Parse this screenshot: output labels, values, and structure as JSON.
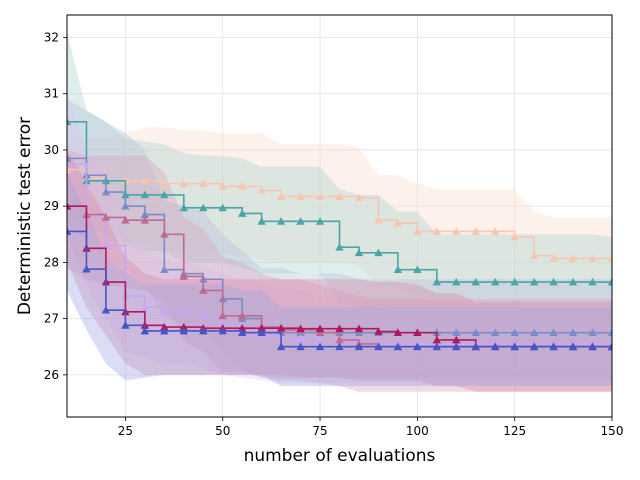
{
  "chart_data": {
    "type": "line",
    "title": "",
    "xlabel": "number of evaluations",
    "ylabel": "Deterministic test error",
    "xlim": [
      10,
      150
    ],
    "ylim": [
      25.25,
      32.4
    ],
    "xticks": [
      25,
      50,
      75,
      100,
      125,
      150
    ],
    "yticks": [
      26,
      27,
      28,
      29,
      30,
      31,
      32
    ],
    "grid": true,
    "x": [
      10,
      15,
      20,
      25,
      30,
      35,
      40,
      45,
      50,
      55,
      60,
      65,
      70,
      75,
      80,
      85,
      90,
      95,
      100,
      105,
      110,
      115,
      120,
      125,
      130,
      135,
      140,
      145,
      150
    ],
    "series": [
      {
        "name": "peach",
        "color": "#f7c6b0",
        "band_color": "#fbd9cc",
        "values": [
          29.65,
          29.5,
          29.45,
          29.45,
          29.45,
          29.4,
          29.4,
          29.4,
          29.35,
          29.35,
          29.28,
          29.17,
          29.17,
          29.17,
          29.17,
          29.15,
          28.75,
          28.7,
          28.55,
          28.55,
          28.55,
          28.55,
          28.55,
          28.45,
          28.12,
          28.07,
          28.07,
          28.07,
          28.07
        ],
        "lower": [
          28.9,
          28.8,
          28.6,
          28.4,
          28.3,
          28.2,
          28.2,
          28.2,
          28.15,
          28.1,
          28.05,
          28.0,
          28.0,
          28.0,
          28.0,
          27.95,
          27.6,
          27.55,
          27.4,
          27.35,
          27.35,
          27.35,
          27.3,
          27.2,
          27.0,
          27.0,
          27.0,
          27.0,
          27.0
        ],
        "upper": [
          30.2,
          30.2,
          30.2,
          30.3,
          30.4,
          30.4,
          30.35,
          30.35,
          30.3,
          30.3,
          30.3,
          30.1,
          30.1,
          30.1,
          30.1,
          30.05,
          29.55,
          29.55,
          29.4,
          29.3,
          29.3,
          29.3,
          29.3,
          29.3,
          28.9,
          28.8,
          28.8,
          28.8,
          28.8
        ]
      },
      {
        "name": "teal",
        "color": "#48a6a6",
        "band_color": "#a7d3ce",
        "values": [
          30.5,
          29.45,
          29.45,
          29.2,
          29.2,
          29.2,
          28.97,
          28.97,
          28.97,
          28.87,
          28.73,
          28.73,
          28.73,
          28.73,
          28.27,
          28.17,
          28.17,
          27.87,
          27.87,
          27.65,
          27.65,
          27.65,
          27.65,
          27.65,
          27.65,
          27.65,
          27.65,
          27.65,
          27.65
        ],
        "lower": [
          28.9,
          28.6,
          28.5,
          28.3,
          28.2,
          28.2,
          28.0,
          28.0,
          28.0,
          27.9,
          27.8,
          27.8,
          27.8,
          27.8,
          27.3,
          27.2,
          27.2,
          27.0,
          27.0,
          26.85,
          26.85,
          26.85,
          26.85,
          26.85,
          26.85,
          26.85,
          26.85,
          26.85,
          26.85
        ],
        "upper": [
          32.1,
          30.7,
          30.5,
          30.2,
          30.15,
          30.1,
          29.95,
          29.9,
          29.9,
          29.85,
          29.7,
          29.7,
          29.7,
          29.7,
          29.3,
          29.2,
          29.2,
          28.9,
          28.9,
          28.5,
          28.5,
          28.5,
          28.5,
          28.5,
          28.5,
          28.5,
          28.5,
          28.5,
          28.45
        ]
      },
      {
        "name": "slate-blue",
        "color": "#7b8bc8",
        "band_color": "#b5c0dd",
        "values": [
          29.85,
          29.55,
          29.25,
          29.0,
          28.85,
          27.87,
          27.8,
          27.7,
          27.35,
          27.0,
          26.75,
          26.75,
          26.75,
          26.75,
          26.75,
          26.75,
          26.75,
          26.75,
          26.75,
          26.75,
          26.75,
          26.75,
          26.75,
          26.75,
          26.75,
          26.75,
          26.75,
          26.75,
          26.75
        ],
        "lower": [
          28.6,
          28.4,
          28.1,
          27.8,
          27.6,
          27.0,
          26.9,
          26.8,
          26.4,
          26.1,
          25.95,
          25.95,
          25.95,
          25.95,
          25.95,
          25.95,
          25.95,
          25.95,
          25.95,
          25.95,
          25.95,
          25.95,
          25.95,
          25.95,
          25.95,
          25.95,
          25.95,
          25.95,
          25.95
        ],
        "upper": [
          30.9,
          30.7,
          30.5,
          30.3,
          30.0,
          29.1,
          29.0,
          28.9,
          28.5,
          28.2,
          27.9,
          27.9,
          27.8,
          27.8,
          27.8,
          27.7,
          27.7,
          27.7,
          27.7,
          27.7,
          27.7,
          27.7,
          27.7,
          27.7,
          27.7,
          27.7,
          27.7,
          27.7,
          27.7
        ]
      },
      {
        "name": "lavender",
        "color": "#c7a6f2",
        "band_color": "#ddc8f4",
        "values": [
          29.75,
          28.8,
          28.3,
          27.4,
          27.2,
          27.12,
          27.12,
          27.05,
          26.9,
          26.8,
          26.7,
          26.65,
          26.65,
          26.6,
          26.6,
          26.55,
          26.55,
          26.55,
          26.55,
          26.55,
          26.55,
          26.55,
          26.55,
          26.55,
          26.55,
          26.55,
          26.55,
          26.55,
          26.55
        ],
        "lower": [
          28.5,
          27.6,
          27.0,
          26.4,
          26.3,
          26.2,
          26.2,
          26.1,
          26.0,
          25.95,
          25.9,
          25.85,
          25.85,
          25.85,
          25.85,
          25.85,
          25.85,
          25.85,
          25.85,
          25.85,
          25.85,
          25.85,
          25.85,
          25.85,
          25.85,
          25.85,
          25.85,
          25.85,
          25.85
        ],
        "upper": [
          31.0,
          30.0,
          29.6,
          28.5,
          28.2,
          28.0,
          28.0,
          27.9,
          27.8,
          27.7,
          27.6,
          27.5,
          27.5,
          27.4,
          27.4,
          27.3,
          27.3,
          27.3,
          27.3,
          27.3,
          27.3,
          27.3,
          27.3,
          27.3,
          27.3,
          27.3,
          27.3,
          27.3,
          27.3
        ]
      },
      {
        "name": "mauve",
        "color": "#c06a92",
        "band_color": "#d8a4bd",
        "values": [
          29.0,
          28.85,
          28.8,
          28.75,
          28.75,
          28.5,
          27.75,
          27.5,
          27.05,
          27.05,
          26.85,
          26.8,
          26.8,
          26.75,
          26.62,
          26.55,
          26.5,
          26.5,
          26.5,
          26.5,
          26.5,
          26.5,
          26.5,
          26.5,
          26.5,
          26.5,
          26.5,
          26.5,
          26.5
        ],
        "lower": [
          27.9,
          27.7,
          27.6,
          27.55,
          27.5,
          27.3,
          26.6,
          26.4,
          26.05,
          26.05,
          25.95,
          25.9,
          25.9,
          25.85,
          25.8,
          25.7,
          25.7,
          25.7,
          25.7,
          25.7,
          25.7,
          25.7,
          25.7,
          25.7,
          25.7,
          25.7,
          25.7,
          25.7,
          25.7
        ],
        "upper": [
          30.0,
          29.9,
          29.9,
          29.9,
          29.9,
          29.6,
          28.8,
          28.6,
          28.1,
          28.0,
          27.8,
          27.7,
          27.7,
          27.6,
          27.5,
          27.4,
          27.35,
          27.35,
          27.35,
          27.35,
          27.35,
          27.35,
          27.35,
          27.35,
          27.35,
          27.35,
          27.35,
          27.35,
          27.35
        ]
      },
      {
        "name": "crimson",
        "color": "#b0185e",
        "band_color": "#d98aa8",
        "values": [
          29.0,
          28.25,
          27.65,
          27.12,
          26.88,
          26.85,
          26.85,
          26.83,
          26.83,
          26.83,
          26.83,
          26.83,
          26.82,
          26.82,
          26.82,
          26.82,
          26.77,
          26.75,
          26.75,
          26.62,
          26.62,
          26.5,
          26.5,
          26.5,
          26.5,
          26.5,
          26.5,
          26.5,
          26.5
        ],
        "lower": [
          28.0,
          27.2,
          26.7,
          26.2,
          26.0,
          26.0,
          26.0,
          26.0,
          26.0,
          26.0,
          26.0,
          26.0,
          25.95,
          25.95,
          25.95,
          25.9,
          25.9,
          25.9,
          25.9,
          25.8,
          25.8,
          25.7,
          25.7,
          25.7,
          25.7,
          25.7,
          25.7,
          25.7,
          25.7
        ],
        "upper": [
          30.0,
          29.4,
          28.8,
          28.1,
          27.8,
          27.7,
          27.7,
          27.7,
          27.7,
          27.7,
          27.7,
          27.7,
          27.7,
          27.7,
          27.7,
          27.7,
          27.65,
          27.65,
          27.6,
          27.45,
          27.45,
          27.3,
          27.3,
          27.3,
          27.3,
          27.3,
          27.3,
          27.3,
          27.3
        ]
      },
      {
        "name": "royal-blue",
        "color": "#4455c8",
        "band_color": "#9ea6e0",
        "values": [
          28.55,
          27.88,
          27.15,
          26.88,
          26.78,
          26.78,
          26.78,
          26.78,
          26.78,
          26.75,
          26.75,
          26.5,
          26.5,
          26.5,
          26.5,
          26.5,
          26.5,
          26.5,
          26.5,
          26.5,
          26.5,
          26.5,
          26.5,
          26.5,
          26.5,
          26.5,
          26.5,
          26.5,
          26.5
        ],
        "lower": [
          27.5,
          26.8,
          26.2,
          25.9,
          25.95,
          26.0,
          26.0,
          26.0,
          26.0,
          26.0,
          26.0,
          25.8,
          25.8,
          25.8,
          25.8,
          25.8,
          25.8,
          25.8,
          25.8,
          25.8,
          25.8,
          25.8,
          25.8,
          25.8,
          25.8,
          25.8,
          25.8,
          25.8,
          25.8
        ],
        "upper": [
          29.6,
          28.9,
          28.1,
          27.8,
          27.6,
          27.6,
          27.6,
          27.6,
          27.6,
          27.5,
          27.5,
          27.2,
          27.2,
          27.2,
          27.2,
          27.2,
          27.2,
          27.2,
          27.2,
          27.2,
          27.2,
          27.2,
          27.2,
          27.2,
          27.2,
          27.2,
          27.2,
          27.2,
          27.2
        ]
      }
    ]
  }
}
